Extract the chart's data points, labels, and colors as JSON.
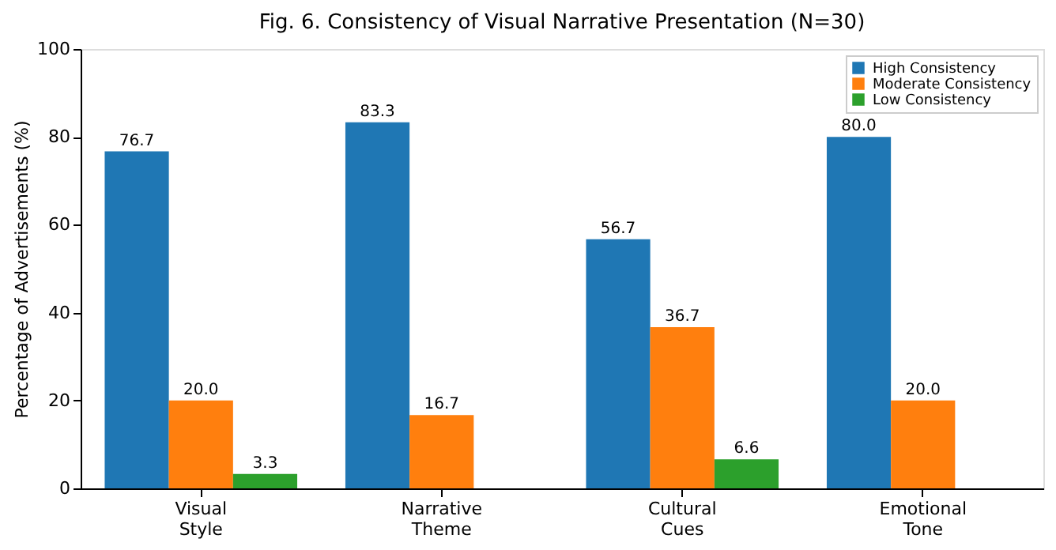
{
  "chart_data": {
    "type": "bar",
    "title": "Fig. 6. Consistency of Visual Narrative Presentation (N=30)",
    "ylabel": "Percentage of Advertisements (%)",
    "categories": [
      "Visual Style",
      "Narrative Theme",
      "Cultural Cues",
      "Emotional Tone"
    ],
    "series": [
      {
        "name": "High Consistency",
        "color": "#1f77b4",
        "values": [
          76.7,
          83.3,
          56.7,
          80.0
        ],
        "value_labels": [
          "76.7",
          "83.3",
          "56.7",
          "80.0"
        ]
      },
      {
        "name": "Moderate Consistency",
        "color": "#ff7f0e",
        "values": [
          20.0,
          16.7,
          36.7,
          20.0
        ],
        "value_labels": [
          "20.0",
          "16.7",
          "36.7",
          "20.0"
        ]
      },
      {
        "name": "Low Consistency",
        "color": "#2ca02c",
        "values": [
          3.3,
          null,
          6.6,
          null
        ],
        "value_labels": [
          "3.3",
          null,
          "6.6",
          null
        ]
      }
    ],
    "ylim": [
      0,
      100
    ],
    "yticks": [
      0,
      20,
      40,
      60,
      80,
      100
    ],
    "grid": false,
    "legend": "top right"
  }
}
